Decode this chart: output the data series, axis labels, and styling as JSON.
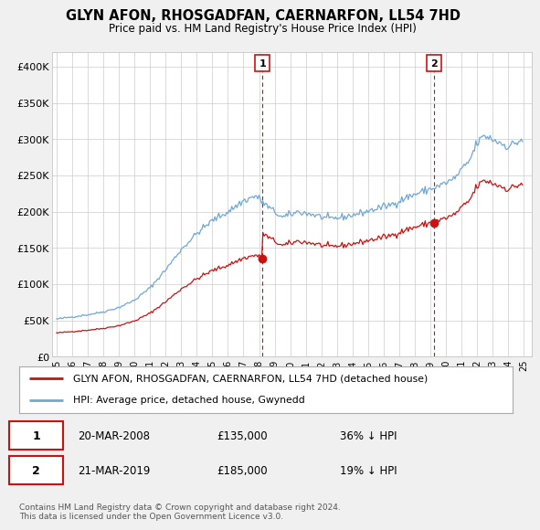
{
  "title": "GLYN AFON, RHOSGADFAN, CAERNARFON, LL54 7HD",
  "subtitle": "Price paid vs. HM Land Registry's House Price Index (HPI)",
  "ylim": [
    0,
    420000
  ],
  "yticks": [
    0,
    50000,
    100000,
    150000,
    200000,
    250000,
    300000,
    350000,
    400000
  ],
  "ytick_labels": [
    "£0",
    "£50K",
    "£100K",
    "£150K",
    "£200K",
    "£250K",
    "£300K",
    "£350K",
    "£400K"
  ],
  "hpi_color": "#6fa8d5",
  "price_color": "#cc1111",
  "marker1_year": 2008.22,
  "marker1_price": 135000,
  "marker1_date": "20-MAR-2008",
  "marker1_pct": "36%",
  "marker2_year": 2019.22,
  "marker2_price": 185000,
  "marker2_date": "21-MAR-2019",
  "marker2_pct": "19%",
  "legend_line1": "GLYN AFON, RHOSGADFAN, CAERNARFON, LL54 7HD (detached house)",
  "legend_line2": "HPI: Average price, detached house, Gwynedd",
  "footer": "Contains HM Land Registry data © Crown copyright and database right 2024.\nThis data is licensed under the Open Government Licence v3.0.",
  "background_color": "#f0f0f0",
  "plot_background": "#ffffff"
}
